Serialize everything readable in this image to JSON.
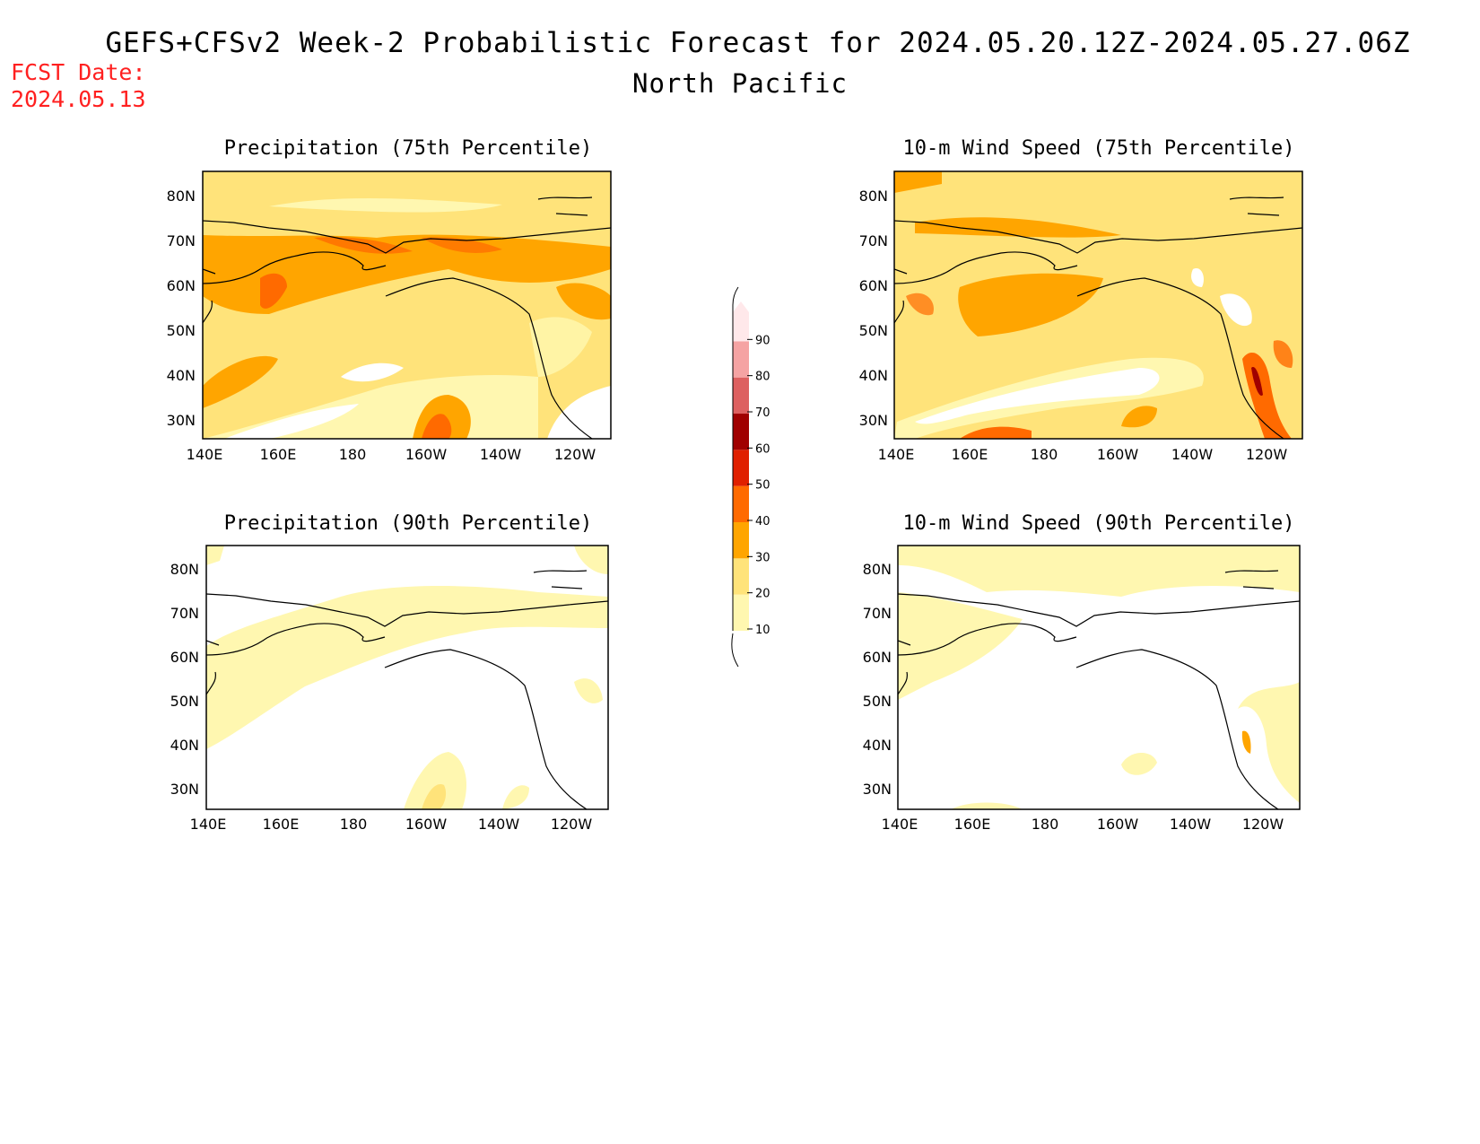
{
  "header": {
    "title": "GEFS+CFSv2 Week-2 Probabilistic Forecast for 2024.05.20.12Z-2024.05.27.06Z",
    "region": "North Pacific",
    "fcst_label": "FCST Date:",
    "fcst_date": "2024.05.13"
  },
  "panels": [
    {
      "title": "Precipitation (75th Percentile)"
    },
    {
      "title": "10-m Wind Speed (75th Percentile)"
    },
    {
      "title": "Precipitation (90th Percentile)"
    },
    {
      "title": "10-m Wind Speed (90th Percentile)"
    }
  ],
  "axes": {
    "lat_labels": [
      "80N",
      "70N",
      "60N",
      "50N",
      "40N",
      "30N"
    ],
    "lon_labels": [
      "140E",
      "160E",
      "180",
      "160W",
      "140W",
      "120W"
    ]
  },
  "colorbar": {
    "levels": [
      "10",
      "20",
      "30",
      "40",
      "50",
      "60",
      "70",
      "80",
      "90"
    ],
    "colors": [
      "#fff7b0",
      "#ffe37a",
      "#ffa500",
      "#ff6a00",
      "#e02000",
      "#a00000",
      "#dd6060",
      "#f5a3a3",
      "#ffe8ea"
    ]
  }
}
